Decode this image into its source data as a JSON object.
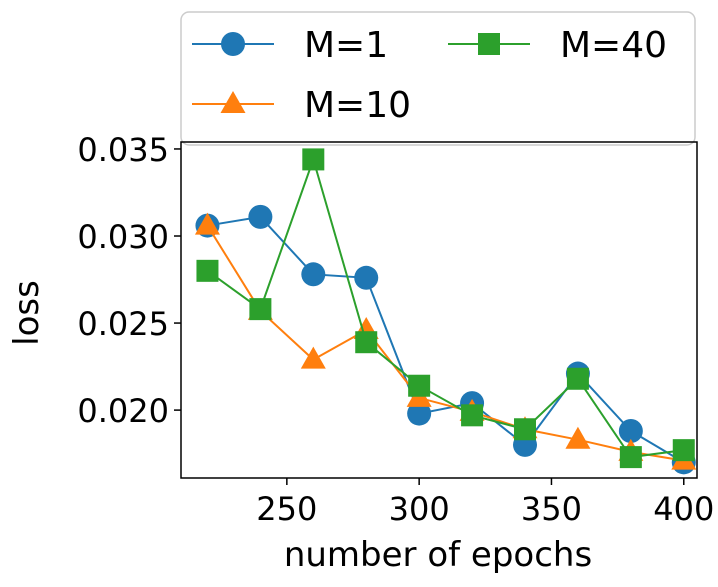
{
  "chart_data": {
    "type": "line",
    "xlabel": "number of epochs",
    "ylabel": "loss",
    "xlim": [
      210,
      405
    ],
    "ylim": [
      0.0161,
      0.0354
    ],
    "x_ticks": [
      "250",
      "300",
      "350",
      "400"
    ],
    "y_ticks": [
      "0.020",
      "0.025",
      "0.030",
      "0.035"
    ],
    "grid": false,
    "legend": {
      "placement": "top",
      "columns": 2
    },
    "series": [
      {
        "name": "M=1",
        "color": "#1f77b4",
        "marker": "circle",
        "x": [
          220,
          240,
          260,
          280,
          300,
          320,
          340,
          360,
          380,
          400
        ],
        "y": [
          0.0306,
          0.0311,
          0.0278,
          0.0276,
          0.0198,
          0.0204,
          0.018,
          0.0221,
          0.0188,
          0.017
        ]
      },
      {
        "name": "M=10",
        "color": "#ff7f0e",
        "marker": "triangle",
        "x": [
          220,
          240,
          260,
          280,
          300,
          320,
          340,
          360,
          380,
          400
        ],
        "y": [
          0.0306,
          0.0257,
          0.0229,
          0.0246,
          0.0207,
          0.0199,
          0.0189,
          0.0183,
          0.0176,
          0.0171
        ]
      },
      {
        "name": "M=40",
        "color": "#2ca02c",
        "marker": "square",
        "x": [
          220,
          240,
          260,
          280,
          300,
          320,
          340,
          360,
          380,
          400
        ],
        "y": [
          0.028,
          0.0258,
          0.0344,
          0.0239,
          0.0214,
          0.0197,
          0.0189,
          0.0218,
          0.0173,
          0.0177
        ]
      }
    ]
  }
}
